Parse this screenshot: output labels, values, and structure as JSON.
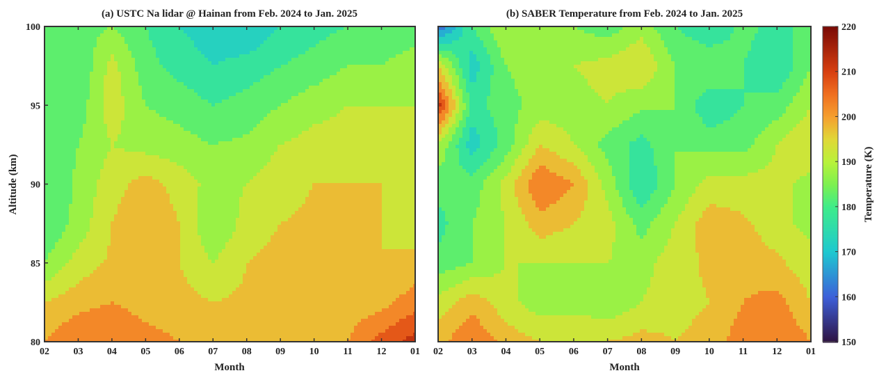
{
  "chart_data": [
    {
      "type": "heatmap",
      "title": "(a) USTC Na lidar @ Hainan from Feb. 2024 to Jan. 2025",
      "xlabel": "Month",
      "ylabel": "Altitude (km)",
      "x": [
        "02",
        "03",
        "04",
        "05",
        "06",
        "07",
        "08",
        "09",
        "10",
        "11",
        "12",
        "01"
      ],
      "y": [
        100,
        97.5,
        95,
        92.5,
        90,
        87.5,
        85,
        82.5,
        80
      ],
      "yticks": [
        80,
        85,
        90,
        95,
        100
      ],
      "ylim": [
        80,
        100
      ],
      "contour_interval": 5,
      "z": [
        [
          180,
          183,
          185,
          180,
          175,
          172,
          170,
          175,
          178,
          180,
          182,
          183
        ],
        [
          185,
          180,
          192,
          182,
          178,
          175,
          177,
          180,
          182,
          185,
          185,
          187
        ],
        [
          183,
          182,
          193,
          185,
          183,
          180,
          182,
          185,
          188,
          190,
          190,
          190
        ],
        [
          182,
          185,
          190,
          188,
          187,
          185,
          186,
          190,
          192,
          192,
          192,
          192
        ],
        [
          180,
          186,
          193,
          197,
          193,
          188,
          190,
          193,
          195,
          195,
          195,
          193
        ],
        [
          180,
          187,
          195,
          200,
          195,
          185,
          192,
          195,
          196,
          196,
          195,
          193
        ],
        [
          185,
          192,
          196,
          197,
          195,
          190,
          195,
          197,
          198,
          196,
          195,
          196
        ],
        [
          195,
          198,
          200,
          198,
          197,
          195,
          196,
          200,
          200,
          197,
          198,
          203
        ],
        [
          200,
          205,
          205,
          202,
          200,
          198,
          199,
          200,
          198,
          200,
          207,
          212
        ]
      ]
    },
    {
      "type": "heatmap",
      "title": "(b) SABER Temperature from Feb. 2024 to Jan. 2025",
      "xlabel": "Month",
      "x": [
        "02",
        "03",
        "04",
        "05",
        "06",
        "07",
        "08",
        "09",
        "10",
        "11",
        "12",
        "01"
      ],
      "y": [
        100,
        97.5,
        95,
        92.5,
        90,
        87.5,
        85,
        82.5,
        80
      ],
      "ylim": [
        80,
        100
      ],
      "contour_interval": 5,
      "z": [
        [
          160,
          180,
          190,
          188,
          185,
          182,
          188,
          180,
          175,
          182,
          178,
          182
        ],
        [
          195,
          172,
          185,
          188,
          190,
          192,
          195,
          185,
          185,
          180,
          175,
          185
        ],
        [
          212,
          178,
          183,
          187,
          188,
          190,
          186,
          185,
          176,
          180,
          182,
          190
        ],
        [
          190,
          172,
          182,
          195,
          190,
          183,
          178,
          185,
          183,
          183,
          190,
          195
        ],
        [
          182,
          182,
          192,
          205,
          200,
          188,
          175,
          185,
          192,
          192,
          192,
          188
        ],
        [
          178,
          185,
          190,
          198,
          195,
          192,
          183,
          190,
          198,
          196,
          192,
          188
        ],
        [
          182,
          185,
          190,
          190,
          190,
          190,
          188,
          193,
          196,
          198,
          196,
          192
        ],
        [
          192,
          198,
          192,
          187,
          188,
          186,
          190,
          193,
          195,
          200,
          202,
          195
        ],
        [
          198,
          205,
          198,
          195,
          195,
          195,
          197,
          195,
          197,
          203,
          205,
          200
        ]
      ]
    }
  ],
  "colorbar": {
    "label": "Temperature (K)",
    "range": [
      150,
      220
    ],
    "ticks": [
      150,
      160,
      170,
      180,
      190,
      200,
      210,
      220
    ],
    "colors": [
      "#2e1240",
      "#3d5fd9",
      "#1ec8d0",
      "#3eec8a",
      "#b8f23a",
      "#f5a030",
      "#d84010",
      "#7a0a05"
    ]
  }
}
